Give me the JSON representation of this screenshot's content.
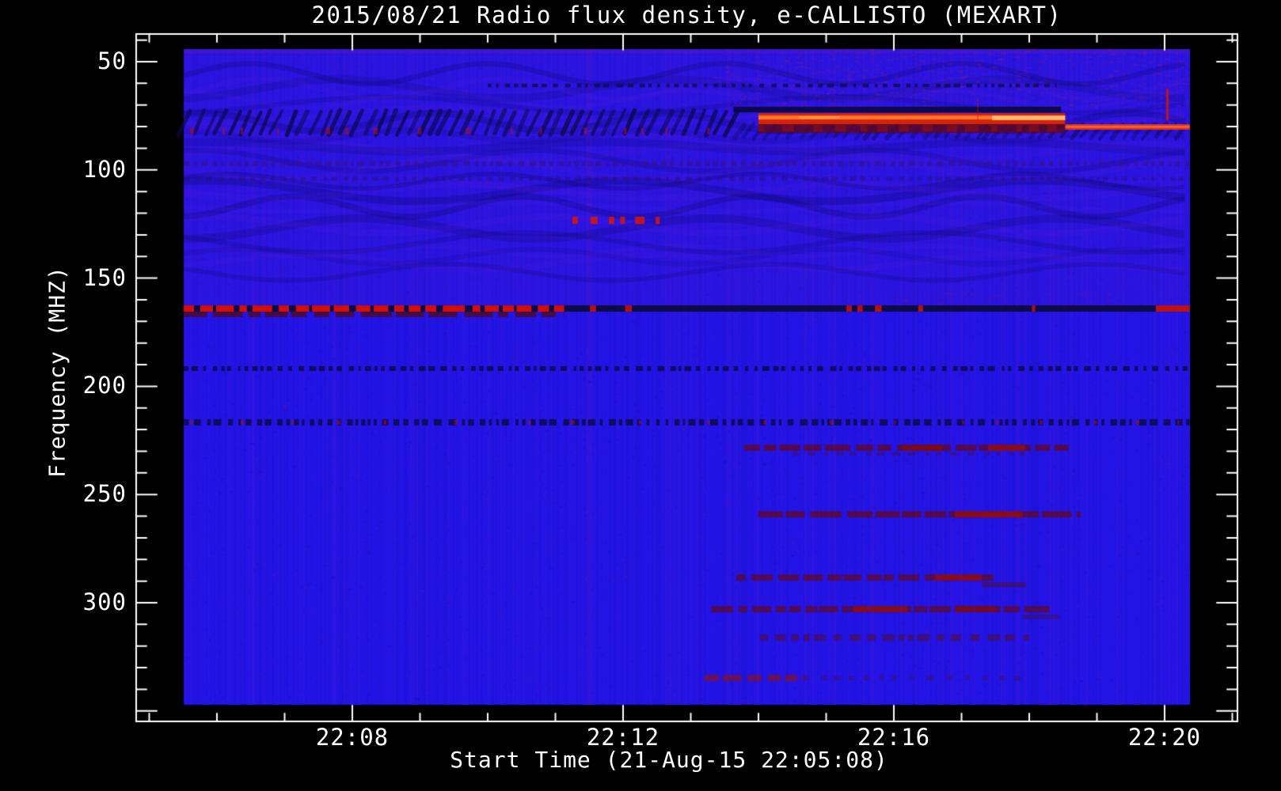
{
  "chart_data": {
    "type": "heatmap",
    "title": "2015/08/21  Radio flux density, e-CALLISTO (MEXART)",
    "xlabel": "Start Time (21-Aug-15 22:05:08)",
    "ylabel": "Frequency (MHZ)",
    "x_axis": {
      "unit": "time (UT), minutes after 22:00",
      "range_min": [
        4.81,
        21.08
      ],
      "major_ticks": [
        {
          "t": 8,
          "label": "22:08"
        },
        {
          "t": 12,
          "label": "22:12"
        },
        {
          "t": 16,
          "label": "22:16"
        },
        {
          "t": 20,
          "label": "22:20"
        }
      ],
      "minor_tick_every_min": 1
    },
    "y_axis": {
      "unit": "MHz",
      "direction": "increases downward",
      "range_mhz": [
        37.2,
        354.8
      ],
      "major_ticks": [
        50,
        100,
        150,
        200,
        250,
        300
      ],
      "minor_tick_every_mhz": 10
    },
    "data_extent": {
      "t_min": 5.51,
      "t_max": 20.37,
      "f_min_mhz": 44.2,
      "f_max_mhz": 346.8
    },
    "colormap": {
      "background_blue": "#2214e8",
      "outside_black": "#000000",
      "frame_white": "#ffffff",
      "rfi_red": "#dc1004",
      "burst_red": "#e02400",
      "burst_core_orange": "#ff8030",
      "burst_hot_yellow": "#ffc879",
      "dark_navy": "#0a0a33",
      "maroon": "#5e0816",
      "purple_noise": "#5a18c8"
    },
    "features": [
      {
        "name": "upper-purple-tint",
        "kind": "tint",
        "t": [
          5.51,
          20.37
        ],
        "f": [
          44.2,
          164
        ],
        "color": "#5a18c8",
        "alpha": 0.14
      },
      {
        "name": "top-edge-tint",
        "kind": "tint",
        "t": [
          5.51,
          20.37
        ],
        "f": [
          44.2,
          46.2
        ],
        "color": "#8a20a0",
        "alpha": 0.22
      },
      {
        "name": "upper-wave-moire",
        "kind": "waves",
        "t": [
          5.51,
          20.37
        ],
        "f": [
          52,
          150
        ],
        "color": "#0c0866",
        "alpha": 0.3
      },
      {
        "name": "upper-wave-moire-light",
        "kind": "waves",
        "t": [
          5.51,
          20.37
        ],
        "f": [
          60,
          145
        ],
        "color": "#6a22d8",
        "alpha": 0.12
      },
      {
        "name": "top-right-red-mottle",
        "kind": "mottle",
        "t": [
          13.3,
          20.37
        ],
        "f": [
          44.2,
          71
        ],
        "color": "#c02848",
        "alpha": 0.14,
        "density": 0.02
      },
      {
        "name": "mid-right-red-mottle",
        "kind": "mottle",
        "t": [
          16.0,
          19.3
        ],
        "f": [
          156,
          163
        ],
        "color": "#b02040",
        "alpha": 0.12,
        "density": 0.02
      },
      {
        "name": "dotted-row-60mhz",
        "kind": "dots",
        "t": [
          10.0,
          18.4
        ],
        "f": [
          60.2,
          61.8
        ],
        "color": "#0d0d52",
        "alpha": 0.85,
        "dash": [
          3,
          9,
          4,
          10
        ]
      },
      {
        "name": "dotted-row-97mhz",
        "kind": "dots",
        "t": [
          5.51,
          20.37
        ],
        "f": [
          96.0,
          98.2
        ],
        "color": "#38128c",
        "alpha": 0.7,
        "dash": [
          3,
          8,
          3,
          8
        ]
      },
      {
        "name": "dotted-row-104mhz",
        "kind": "dots",
        "t": [
          5.51,
          20.37
        ],
        "f": [
          103.2,
          105.0
        ],
        "color": "#2a1078",
        "alpha": 0.5,
        "dash": [
          3,
          8,
          4,
          9
        ]
      },
      {
        "name": "interference-hatch-band",
        "kind": "hatch",
        "t": [
          5.51,
          13.7
        ],
        "f": [
          71.9,
          84.4
        ],
        "color": "#0a0a4e",
        "alpha": 0.85
      },
      {
        "name": "interference-hatch-band-right",
        "kind": "hatch",
        "t": [
          13.7,
          20.37
        ],
        "f": [
          78.0,
          86.0
        ],
        "color": "#0a0a4e",
        "alpha": 0.5
      },
      {
        "name": "hatch-red-specks",
        "kind": "dots",
        "t": [
          5.6,
          13.5
        ],
        "f": [
          80.5,
          83.5
        ],
        "color": "#b31310",
        "alpha": 0.55,
        "dash": [
          2,
          6,
          18,
          60
        ]
      },
      {
        "name": "dark-streak-72mhz",
        "kind": "hband",
        "t": [
          13.63,
          18.47
        ],
        "f": [
          70.8,
          73.4
        ],
        "color": "#090940",
        "alpha": 0.92
      },
      {
        "name": "burst-band-75mhz",
        "kind": "hband",
        "t": [
          14.0,
          18.53
        ],
        "f": [
          73.8,
          78.9
        ],
        "color": "#e02400",
        "alpha": 0.95,
        "hot": [
          {
            "t": [
              14.0,
              18.53
            ],
            "f": [
              74.9,
              76.7
            ],
            "color": "#ff8030",
            "alpha": 0.9
          },
          {
            "t": [
              17.45,
              18.53
            ],
            "f": [
              74.9,
              77.0
            ],
            "color": "#ffc879",
            "alpha": 0.85
          },
          {
            "t": [
              14.6,
              15.2
            ],
            "f": [
              75.2,
              76.3
            ],
            "color": "#ffab50",
            "alpha": 0.6
          }
        ]
      },
      {
        "name": "burst-tail-line-80mhz",
        "kind": "hband",
        "t": [
          18.53,
          20.37
        ],
        "f": [
          78.9,
          81.4
        ],
        "color": "#e8350e",
        "alpha": 0.95,
        "hot": [
          {
            "t": [
              18.53,
              20.37
            ],
            "f": [
              79.5,
              80.6
            ],
            "color": "#ff6a30",
            "alpha": 0.8
          }
        ]
      },
      {
        "name": "burst-underside-maroon",
        "kind": "hband",
        "t": [
          14.0,
          18.53
        ],
        "f": [
          78.9,
          82.9
        ],
        "color": "#5e0816",
        "alpha": 0.8
      },
      {
        "name": "burst-underside-dashes",
        "kind": "dashes",
        "t": [
          14.0,
          18.53
        ],
        "f": [
          79.3,
          82.3
        ],
        "color": "#99100d",
        "alpha": 0.5,
        "dash": [
          6,
          18,
          8,
          26
        ]
      },
      {
        "name": "red-vline-right",
        "kind": "vline",
        "t": [
          20.04,
          20.04
        ],
        "f": [
          62.4,
          77.1
        ],
        "color": "#c81708",
        "alpha": 0.9,
        "w": 3
      },
      {
        "name": "red-vline-faint",
        "kind": "vline",
        "t": [
          17.24,
          17.24
        ],
        "f": [
          67,
          77
        ],
        "color": "#c81708",
        "alpha": 0.4,
        "w": 2
      },
      {
        "name": "dash-row-123mhz",
        "kind": "dashes",
        "t": [
          11.25,
          12.66
        ],
        "f": [
          121.6,
          125.0
        ],
        "color": "#dc1505",
        "alpha": 0.85,
        "dash": [
          5,
          12,
          6,
          18
        ]
      },
      {
        "name": "rfi-165mhz-shadow",
        "kind": "dashes",
        "t": [
          5.51,
          11.13
        ],
        "f": [
          165.5,
          168.0
        ],
        "color": "#500a12",
        "alpha": 0.75,
        "dash": [
          10,
          40,
          4,
          10
        ]
      },
      {
        "name": "rfi-165mhz-dark-line",
        "kind": "hband",
        "t": [
          5.51,
          19.87
        ],
        "f": [
          162.6,
          165.5
        ],
        "color": "#0a0a33",
        "alpha": 0.9,
        "hot": [
          {
            "t": [
              11.51,
              11.6
            ],
            "f": [
              162.6,
              165.5
            ],
            "color": "#c41206",
            "alpha": 0.9
          },
          {
            "t": [
              12.03,
              12.13
            ],
            "f": [
              162.6,
              165.5
            ],
            "color": "#c41206",
            "alpha": 0.9
          },
          {
            "t": [
              15.3,
              15.38
            ],
            "f": [
              162.6,
              165.5
            ],
            "color": "#c41206",
            "alpha": 0.9
          },
          {
            "t": [
              15.46,
              15.54
            ],
            "f": [
              162.6,
              165.5
            ],
            "color": "#c41206",
            "alpha": 0.9
          },
          {
            "t": [
              15.72,
              15.82
            ],
            "f": [
              162.6,
              165.5
            ],
            "color": "#c41206",
            "alpha": 0.9
          },
          {
            "t": [
              16.36,
              16.43
            ],
            "f": [
              162.6,
              165.5
            ],
            "color": "#c41206",
            "alpha": 0.9
          },
          {
            "t": [
              18.04,
              18.09
            ],
            "f": [
              162.6,
              165.5
            ],
            "color": "#c41206",
            "alpha": 0.8
          }
        ]
      },
      {
        "name": "rfi-165mhz-left-red-dashes",
        "kind": "dashes",
        "t": [
          5.51,
          11.13
        ],
        "f": [
          162.6,
          165.5
        ],
        "color": "#dc1004",
        "alpha": 0.95,
        "dash": [
          8,
          30,
          3,
          10
        ]
      },
      {
        "name": "rfi-165mhz-right-red",
        "kind": "hband",
        "t": [
          19.87,
          20.37
        ],
        "f": [
          162.6,
          165.5
        ],
        "color": "#c41206",
        "alpha": 0.95
      },
      {
        "name": "dotted-row-192mhz",
        "kind": "dots",
        "t": [
          5.51,
          20.37
        ],
        "f": [
          190.7,
          192.9
        ],
        "color": "#0c0c48",
        "alpha": 0.85,
        "dash": [
          3,
          9,
          3,
          9
        ]
      },
      {
        "name": "dotted-row-217mhz",
        "kind": "dots",
        "t": [
          5.51,
          20.37
        ],
        "f": [
          215.2,
          218.1
        ],
        "color": "#0c0c48",
        "alpha": 0.85,
        "dash": [
          3,
          10,
          3,
          9
        ]
      },
      {
        "name": "dotted-row-217mhz-red-specks",
        "kind": "dots",
        "t": [
          5.6,
          20.3
        ],
        "f": [
          215.6,
          217.7
        ],
        "color": "#a01212",
        "alpha": 0.6,
        "dash": [
          2,
          5,
          40,
          90
        ]
      },
      {
        "name": "drift-streak-228mhz",
        "kind": "dashes",
        "t": [
          13.79,
          18.58
        ],
        "f": [
          227.0,
          229.8
        ],
        "color": "#64081a",
        "alpha": 0.75,
        "dash": [
          10,
          40,
          2,
          8
        ],
        "hot": [
          {
            "t": [
              16.13,
              16.72
            ],
            "f": [
              227.0,
              229.8
            ],
            "color": "#7e0a10",
            "alpha": 0.9
          },
          {
            "t": [
              17.39,
              17.94
            ],
            "f": [
              227.0,
              229.8
            ],
            "color": "#8c0c12",
            "alpha": 0.9
          }
        ]
      },
      {
        "name": "drift-streak-228mhz-under",
        "kind": "dots",
        "t": [
          14.5,
          18.0
        ],
        "f": [
          230.5,
          232.0
        ],
        "color": "#50101c",
        "alpha": 0.4,
        "dash": [
          4,
          10,
          6,
          14
        ]
      },
      {
        "name": "drift-streak-259mhz",
        "kind": "dashes",
        "t": [
          14.0,
          18.76
        ],
        "f": [
          257.7,
          260.6
        ],
        "color": "#64081a",
        "alpha": 0.75,
        "dash": [
          10,
          40,
          2,
          8
        ],
        "hot": [
          {
            "t": [
              16.9,
              17.9
            ],
            "f": [
              257.7,
              260.6
            ],
            "color": "#8c0c12",
            "alpha": 0.9
          }
        ]
      },
      {
        "name": "drift-streak-288mhz",
        "kind": "dashes",
        "t": [
          13.67,
          17.47
        ],
        "f": [
          286.9,
          289.8
        ],
        "color": "#64081a",
        "alpha": 0.7,
        "dash": [
          10,
          36,
          2,
          8
        ],
        "hot": [
          {
            "t": [
              16.6,
              17.3
            ],
            "f": [
              286.9,
              289.8
            ],
            "color": "#8c0c12",
            "alpha": 0.85
          }
        ]
      },
      {
        "name": "drift-streak-288mhz-step",
        "kind": "hband",
        "t": [
          17.3,
          17.95
        ],
        "f": [
          290.5,
          292.8
        ],
        "color": "#50101c",
        "alpha": 0.5
      },
      {
        "name": "drift-streak-303mhz",
        "kind": "dashes",
        "t": [
          13.3,
          18.3
        ],
        "f": [
          301.5,
          304.4
        ],
        "color": "#64081a",
        "alpha": 0.7,
        "dash": [
          10,
          36,
          2,
          8
        ],
        "hot": [
          {
            "t": [
              15.4,
              16.2
            ],
            "f": [
              301.5,
              304.4
            ],
            "color": "#8c0c12",
            "alpha": 0.85
          },
          {
            "t": [
              16.9,
              17.5
            ],
            "f": [
              301.5,
              304.4
            ],
            "color": "#7a0a14",
            "alpha": 0.8
          }
        ]
      },
      {
        "name": "drift-streak-303mhz-step",
        "kind": "hband",
        "t": [
          17.9,
          18.45
        ],
        "f": [
          305.5,
          307.5
        ],
        "color": "#50101c",
        "alpha": 0.4
      },
      {
        "name": "drift-streak-316mhz",
        "kind": "dots",
        "t": [
          14.02,
          17.99
        ],
        "f": [
          314.6,
          317.6
        ],
        "color": "#5a0c18",
        "alpha": 0.5,
        "dash": [
          6,
          16,
          4,
          12
        ]
      },
      {
        "name": "streak-335mhz",
        "kind": "dashes",
        "t": [
          13.2,
          14.66
        ],
        "f": [
          333.3,
          336.2
        ],
        "color": "#8c1010",
        "alpha": 0.65,
        "dash": [
          8,
          24,
          3,
          9
        ]
      },
      {
        "name": "streak-335mhz-tail",
        "kind": "dots",
        "t": [
          14.66,
          17.9
        ],
        "f": [
          333.8,
          335.8
        ],
        "color": "#50101c",
        "alpha": 0.35,
        "dash": [
          4,
          10,
          8,
          18
        ]
      }
    ]
  }
}
